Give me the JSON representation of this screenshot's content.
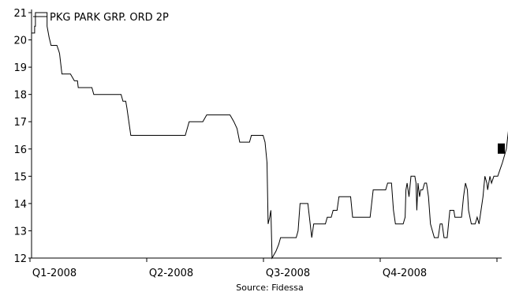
{
  "chart_data": {
    "type": "line",
    "title": "",
    "xlabel": "",
    "ylabel": "",
    "source": "Source: Fidessa",
    "ylim": [
      12,
      21
    ],
    "y_ticks": [
      12,
      13,
      14,
      15,
      16,
      17,
      18,
      19,
      20,
      21
    ],
    "x_tick_labels": [
      "Q1-2008",
      "Q2-2008",
      "Q3-2008",
      "Q4-2008"
    ],
    "x_range_months": [
      0,
      12.3
    ],
    "legend": "top-left",
    "grid": false,
    "series": [
      {
        "name": "PKG PARK GRP. ORD 2P",
        "color": "#000000",
        "points": [
          [
            0.0,
            20.25
          ],
          [
            0.08,
            20.25
          ],
          [
            0.08,
            20.5
          ],
          [
            0.1,
            20.5
          ],
          [
            0.1,
            21.0
          ],
          [
            0.4,
            21.0
          ],
          [
            0.4,
            20.5
          ],
          [
            0.45,
            20.1
          ],
          [
            0.5,
            19.8
          ],
          [
            0.65,
            19.8
          ],
          [
            0.7,
            19.6
          ],
          [
            0.72,
            19.5
          ],
          [
            0.78,
            18.75
          ],
          [
            1.0,
            18.75
          ],
          [
            1.1,
            18.5
          ],
          [
            1.18,
            18.5
          ],
          [
            1.2,
            18.25
          ],
          [
            1.55,
            18.25
          ],
          [
            1.6,
            18.0
          ],
          [
            2.3,
            18.0
          ],
          [
            2.35,
            17.75
          ],
          [
            2.42,
            17.75
          ],
          [
            2.45,
            17.5
          ],
          [
            2.55,
            16.5
          ],
          [
            3.0,
            16.5
          ],
          [
            3.95,
            16.5
          ],
          [
            4.05,
            17.0
          ],
          [
            4.4,
            17.0
          ],
          [
            4.5,
            17.25
          ],
          [
            5.1,
            17.25
          ],
          [
            5.2,
            17.0
          ],
          [
            5.28,
            16.75
          ],
          [
            5.35,
            16.25
          ],
          [
            5.6,
            16.25
          ],
          [
            5.65,
            16.5
          ],
          [
            5.95,
            16.5
          ],
          [
            6.0,
            16.25
          ],
          [
            6.05,
            15.5
          ],
          [
            6.08,
            13.25
          ],
          [
            6.12,
            13.5
          ],
          [
            6.15,
            13.75
          ],
          [
            6.18,
            12.0
          ],
          [
            6.28,
            12.25
          ],
          [
            6.35,
            12.5
          ],
          [
            6.4,
            12.75
          ],
          [
            6.6,
            12.75
          ],
          [
            6.8,
            12.75
          ],
          [
            6.85,
            13.0
          ],
          [
            6.9,
            14.0
          ],
          [
            7.1,
            14.0
          ],
          [
            7.2,
            12.75
          ],
          [
            7.25,
            13.25
          ],
          [
            7.55,
            13.25
          ],
          [
            7.6,
            13.5
          ],
          [
            7.7,
            13.5
          ],
          [
            7.75,
            13.75
          ],
          [
            7.85,
            13.75
          ],
          [
            7.9,
            14.25
          ],
          [
            8.2,
            14.25
          ],
          [
            8.25,
            13.5
          ],
          [
            8.7,
            13.5
          ],
          [
            8.78,
            14.5
          ],
          [
            9.1,
            14.5
          ],
          [
            9.15,
            14.75
          ],
          [
            9.25,
            14.75
          ],
          [
            9.3,
            13.75
          ],
          [
            9.35,
            13.25
          ],
          [
            9.55,
            13.25
          ],
          [
            9.6,
            13.5
          ],
          [
            9.62,
            14.5
          ],
          [
            9.65,
            14.75
          ],
          [
            9.7,
            14.25
          ],
          [
            9.75,
            15.0
          ],
          [
            9.85,
            15.0
          ],
          [
            9.88,
            14.75
          ],
          [
            9.9,
            13.75
          ],
          [
            9.93,
            14.75
          ],
          [
            9.97,
            14.25
          ],
          [
            10.0,
            14.5
          ],
          [
            10.05,
            14.5
          ],
          [
            10.1,
            14.75
          ],
          [
            10.15,
            14.75
          ],
          [
            10.2,
            14.25
          ],
          [
            10.25,
            13.25
          ],
          [
            10.35,
            12.75
          ],
          [
            10.45,
            12.75
          ],
          [
            10.5,
            13.25
          ],
          [
            10.55,
            13.25
          ],
          [
            10.6,
            12.75
          ],
          [
            10.68,
            12.75
          ],
          [
            10.75,
            13.75
          ],
          [
            10.85,
            13.75
          ],
          [
            10.88,
            13.5
          ],
          [
            11.05,
            13.5
          ],
          [
            11.1,
            14.25
          ],
          [
            11.15,
            14.75
          ],
          [
            11.2,
            14.5
          ],
          [
            11.23,
            13.75
          ],
          [
            11.3,
            13.25
          ],
          [
            11.4,
            13.25
          ],
          [
            11.45,
            13.5
          ],
          [
            11.5,
            13.25
          ],
          [
            11.55,
            13.75
          ],
          [
            11.6,
            14.25
          ],
          [
            11.65,
            15.0
          ],
          [
            11.7,
            14.75
          ],
          [
            11.72,
            14.5
          ],
          [
            11.78,
            15.0
          ],
          [
            11.82,
            14.75
          ],
          [
            11.88,
            15.0
          ],
          [
            11.98,
            15.0
          ],
          [
            12.1,
            15.5
          ],
          [
            12.2,
            16.0
          ],
          [
            12.3,
            17.25
          ],
          [
            12.35,
            17.0
          ],
          [
            12.45,
            17.0
          ],
          [
            12.5,
            16.5
          ],
          [
            12.6,
            16.5
          ],
          [
            12.65,
            16.25
          ],
          [
            12.7,
            15.5
          ],
          [
            12.85,
            15.5
          ],
          [
            12.88,
            16.75
          ],
          [
            12.95,
            17.0
          ],
          [
            13.15,
            17.0
          ],
          [
            13.25,
            16.75
          ],
          [
            13.35,
            16.75
          ],
          [
            13.4,
            16.5
          ],
          [
            13.55,
            16.5
          ],
          [
            13.6,
            16.25
          ],
          [
            13.7,
            16.25
          ],
          [
            13.75,
            16.0
          ]
        ]
      }
    ],
    "last_value": 16.0
  }
}
